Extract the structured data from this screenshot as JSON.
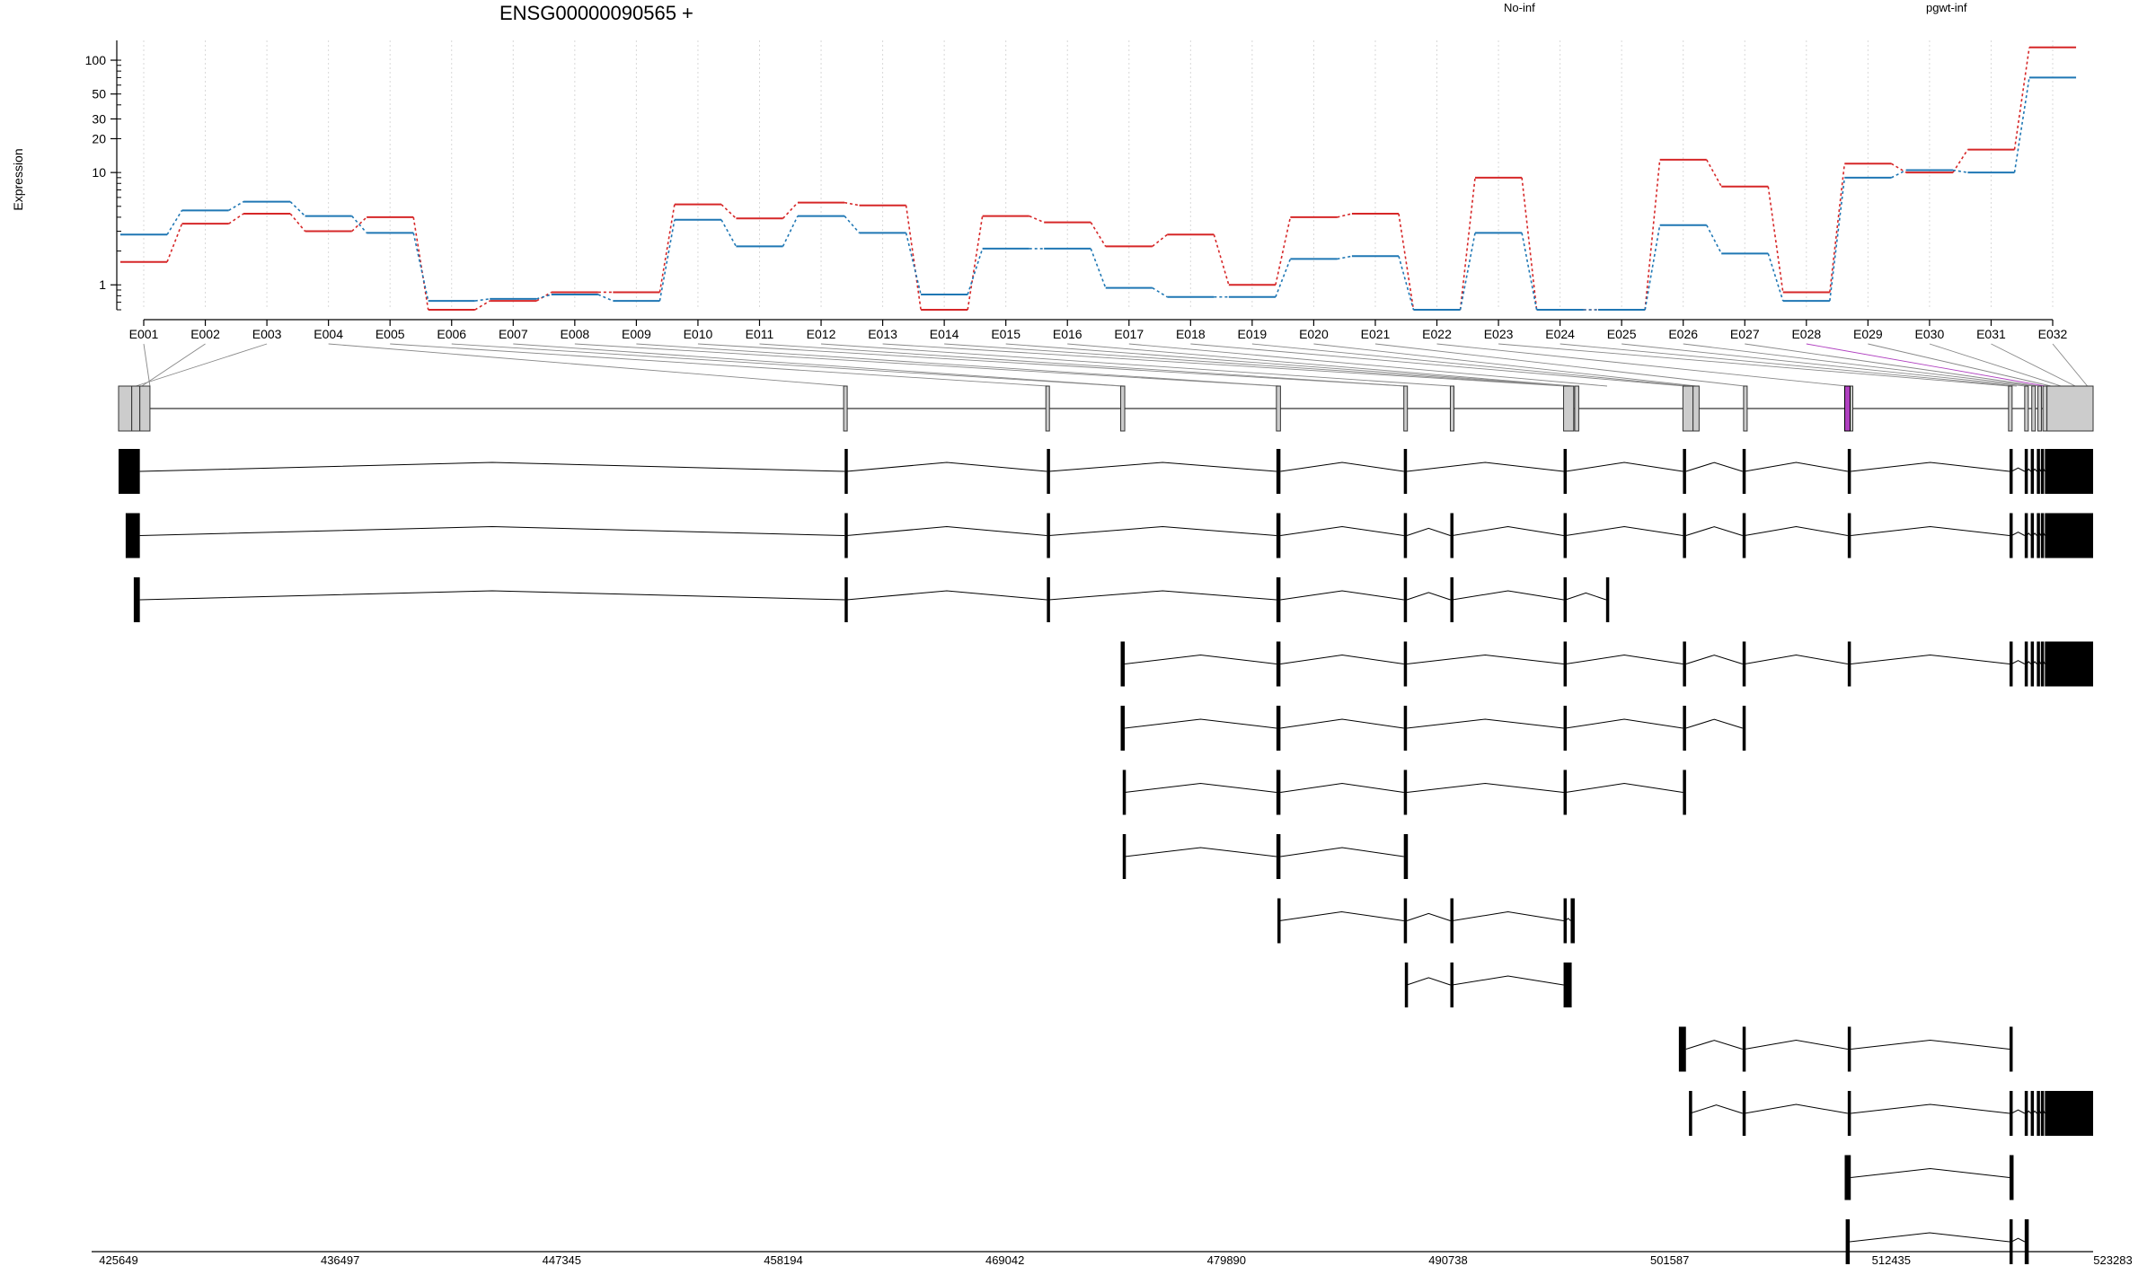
{
  "chart_data": {
    "type": "line",
    "title": "ENSG00000090565 +",
    "ylabel": "Expression",
    "xlabel": "",
    "y_scale": "log",
    "ylim": [
      0.6,
      150
    ],
    "y_ticks": [
      "1",
      "10",
      "20",
      "30",
      "50",
      "100"
    ],
    "y_tick_values": [
      1,
      10,
      20,
      30,
      50,
      100
    ],
    "grid": "vertical dotted lines at exon centers",
    "legend_placement": "top, inline",
    "categories": [
      "E001",
      "E002",
      "E003",
      "E004",
      "E005",
      "E006",
      "E007",
      "E008",
      "E009",
      "E010",
      "E011",
      "E012",
      "E013",
      "E014",
      "E015",
      "E016",
      "E017",
      "E018",
      "E019",
      "E020",
      "E021",
      "E022",
      "E023",
      "E024",
      "E025",
      "E026",
      "E027",
      "E028",
      "E029",
      "E030",
      "E031",
      "E032"
    ],
    "series": [
      {
        "name": "No-inf",
        "color": "#d62728",
        "values": [
          1.6,
          3.5,
          4.3,
          3.0,
          4.0,
          0.6,
          0.72,
          0.86,
          0.86,
          5.2,
          3.9,
          5.4,
          5.1,
          0.6,
          4.1,
          3.6,
          2.2,
          2.8,
          1.0,
          4.0,
          4.3,
          0.6,
          9.0,
          0.6,
          0.6,
          13.0,
          7.5,
          0.86,
          12.0,
          10.0,
          16.0,
          130.0
        ]
      },
      {
        "name": "pgwt-inf",
        "color": "#1f77b4",
        "values": [
          2.8,
          4.6,
          5.5,
          4.1,
          2.9,
          0.72,
          0.75,
          0.82,
          0.72,
          3.8,
          2.2,
          4.1,
          2.9,
          0.82,
          2.1,
          2.1,
          0.94,
          0.78,
          0.78,
          1.7,
          1.8,
          0.6,
          2.9,
          0.6,
          0.6,
          3.4,
          1.9,
          0.72,
          9.0,
          10.5,
          10.0,
          70.0
        ]
      }
    ],
    "genomic_axis": {
      "ticks": [
        "425649",
        "436497",
        "447345",
        "458194",
        "469042",
        "479890",
        "490738",
        "501587",
        "512435",
        "523283"
      ],
      "range": [
        425649,
        523283
      ]
    },
    "gene_model": {
      "highlight_exon": "E028",
      "highlight_color": "#b040c0",
      "exon_coords": [
        [
          425649,
          426300
        ],
        [
          426300,
          426700
        ],
        [
          426700,
          427200
        ],
        [
          461500,
          461650
        ],
        [
          471500,
          471650
        ],
        [
          475200,
          475400
        ],
        [
          482900,
          483100
        ],
        [
          489200,
          489350
        ],
        [
          491500,
          491650
        ],
        [
          497100,
          497600
        ],
        [
          497650,
          497850
        ],
        [
          503000,
          503500
        ],
        [
          503500,
          503800
        ],
        [
          506000,
          506150
        ],
        [
          511000,
          511400
        ],
        [
          519100,
          519250
        ],
        [
          519900,
          520050
        ],
        [
          520250,
          520400
        ],
        [
          520550,
          520700
        ],
        [
          520800,
          521000
        ],
        [
          521000,
          523283
        ]
      ],
      "transcripts": [
        {
          "exons": [
            [
              425649,
              426700
            ],
            [
              461550,
              461650
            ],
            [
              471550,
              471650
            ],
            [
              482900,
              483100
            ],
            [
              489200,
              489350
            ],
            [
              497100,
              497200
            ],
            [
              503000,
              503150
            ],
            [
              505950,
              506050
            ],
            [
              511150,
              511300
            ],
            [
              519150,
              519250
            ],
            [
              519900,
              520000
            ],
            [
              520200,
              520300
            ],
            [
              520500,
              520600
            ],
            [
              520700,
              520800
            ],
            [
              520900,
              523283
            ]
          ]
        },
        {
          "exons": [
            [
              426000,
              426700
            ],
            [
              461550,
              461650
            ],
            [
              471550,
              471650
            ],
            [
              482900,
              483100
            ],
            [
              489200,
              489350
            ],
            [
              491500,
              491600
            ],
            [
              497100,
              497200
            ],
            [
              503000,
              503150
            ],
            [
              505950,
              506050
            ],
            [
              511150,
              511300
            ],
            [
              519150,
              519250
            ],
            [
              519900,
              520000
            ],
            [
              520200,
              520300
            ],
            [
              520500,
              520600
            ],
            [
              520700,
              520800
            ],
            [
              520900,
              523283
            ]
          ]
        },
        {
          "exons": [
            [
              426400,
              426700
            ],
            [
              461550,
              461650
            ],
            [
              471550,
              471650
            ],
            [
              482900,
              483100
            ],
            [
              489200,
              489350
            ],
            [
              491500,
              491600
            ],
            [
              497100,
              497200
            ],
            [
              499200,
              499300
            ]
          ]
        },
        {
          "exons": [
            [
              475200,
              475400
            ],
            [
              482900,
              483100
            ],
            [
              489200,
              489350
            ],
            [
              497100,
              497200
            ],
            [
              503000,
              503150
            ],
            [
              505950,
              506050
            ],
            [
              511150,
              511300
            ],
            [
              519150,
              519250
            ],
            [
              519900,
              520000
            ],
            [
              520200,
              520300
            ],
            [
              520500,
              520600
            ],
            [
              520700,
              520800
            ],
            [
              520900,
              523283
            ]
          ]
        },
        {
          "exons": [
            [
              475200,
              475400
            ],
            [
              482900,
              483100
            ],
            [
              489200,
              489350
            ],
            [
              497100,
              497200
            ],
            [
              503000,
              503150
            ],
            [
              505950,
              506050
            ]
          ]
        },
        {
          "exons": [
            [
              475300,
              475400
            ],
            [
              482900,
              483100
            ],
            [
              489200,
              489350
            ],
            [
              497100,
              497200
            ],
            [
              503000,
              503150
            ]
          ]
        },
        {
          "exons": [
            [
              475300,
              475400
            ],
            [
              482900,
              483100
            ],
            [
              489200,
              489400
            ]
          ]
        },
        {
          "exons": [
            [
              482950,
              483050
            ],
            [
              489200,
              489350
            ],
            [
              491500,
              491600
            ],
            [
              497100,
              497200
            ],
            [
              497450,
              497650
            ]
          ]
        },
        {
          "exons": [
            [
              489250,
              489350
            ],
            [
              491500,
              491600
            ],
            [
              497100,
              497500
            ]
          ]
        },
        {
          "exons": [
            [
              502800,
              503150
            ],
            [
              505950,
              506050
            ],
            [
              511150,
              511300
            ],
            [
              519150,
              519250
            ]
          ]
        },
        {
          "exons": [
            [
              503300,
              503350
            ],
            [
              505950,
              506050
            ],
            [
              511150,
              511300
            ],
            [
              519150,
              519250
            ],
            [
              519900,
              520000
            ],
            [
              520200,
              520300
            ],
            [
              520500,
              520600
            ],
            [
              520700,
              520800
            ],
            [
              520900,
              523283
            ]
          ]
        },
        {
          "exons": [
            [
              511000,
              511300
            ],
            [
              519150,
              519350
            ]
          ]
        },
        {
          "exons": [
            [
              511050,
              511250
            ],
            [
              519150,
              519250
            ],
            [
              519900,
              520100
            ]
          ]
        }
      ]
    }
  }
}
